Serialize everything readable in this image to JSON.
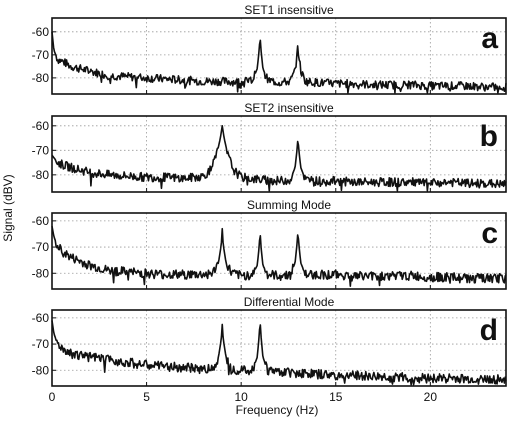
{
  "figure": {
    "xlabel": "Frequency (Hz)",
    "ylabel": "Signal (dBV)"
  },
  "chart_data": [
    {
      "type": "line",
      "title": "SET1 insensitive",
      "panel_letter": "a",
      "xlim": [
        0,
        24
      ],
      "ylim": [
        -87,
        -54
      ],
      "x_ticks": [
        0,
        5,
        10,
        15,
        20
      ],
      "y_ticks": [
        -60,
        -70,
        -80
      ],
      "grid": true,
      "series": [
        {
          "x": [
            0,
            0.1,
            0.3,
            0.6,
            1,
            2,
            3,
            4,
            5,
            6,
            7,
            8,
            9,
            10,
            10.6,
            10.85,
            10.95,
            11,
            11.05,
            11.15,
            11.4,
            12,
            12.6,
            12.85,
            12.95,
            13,
            13.05,
            13.15,
            13.4,
            14,
            15,
            16,
            17,
            18,
            19,
            20,
            21,
            22,
            23,
            24
          ],
          "y": [
            -60,
            -68,
            -72,
            -73,
            -75,
            -77,
            -79,
            -79.5,
            -80,
            -80.5,
            -81,
            -81.5,
            -81.5,
            -81.8,
            -81,
            -76,
            -68,
            -62,
            -68,
            -76,
            -81,
            -82,
            -81.5,
            -77,
            -70,
            -67,
            -70,
            -77,
            -81.5,
            -82,
            -82.5,
            -82.5,
            -83,
            -83,
            -83,
            -83.5,
            -83.5,
            -83.5,
            -84,
            -84
          ]
        }
      ]
    },
    {
      "type": "line",
      "title": "SET2 insensitive",
      "panel_letter": "b",
      "xlim": [
        0,
        24
      ],
      "ylim": [
        -87,
        -56
      ],
      "x_ticks": [
        0,
        5,
        10,
        15,
        20
      ],
      "y_ticks": [
        -60,
        -70,
        -80
      ],
      "grid": true,
      "series": [
        {
          "x": [
            0,
            0.3,
            0.6,
            1,
            2,
            3,
            4,
            5,
            6,
            7,
            8,
            8.4,
            8.7,
            8.9,
            9,
            9.1,
            9.3,
            9.6,
            10,
            11,
            12,
            12.6,
            12.85,
            12.95,
            13,
            13.05,
            13.15,
            13.4,
            14,
            15,
            16,
            17,
            18,
            19,
            20,
            21,
            22,
            23,
            24
          ],
          "y": [
            -72,
            -75,
            -76,
            -77,
            -79,
            -80,
            -80.5,
            -81,
            -81,
            -81.5,
            -80.5,
            -78,
            -72,
            -65,
            -60,
            -65,
            -72,
            -78,
            -81,
            -82,
            -82.5,
            -82,
            -77,
            -70,
            -65,
            -70,
            -77,
            -82,
            -82.5,
            -82.5,
            -83,
            -83,
            -83,
            -83,
            -83.5,
            -83,
            -83.5,
            -83.5,
            -84
          ]
        }
      ]
    },
    {
      "type": "line",
      "title": "Summing Mode",
      "panel_letter": "c",
      "xlim": [
        0,
        24
      ],
      "ylim": [
        -86,
        -57
      ],
      "x_ticks": [
        0,
        5,
        10,
        15,
        20
      ],
      "y_ticks": [
        -60,
        -70,
        -80
      ],
      "grid": true,
      "series": [
        {
          "x": [
            0,
            0.1,
            0.3,
            0.6,
            1,
            2,
            3,
            4,
            5,
            6,
            7,
            8,
            8.5,
            8.8,
            8.95,
            9,
            9.05,
            9.2,
            9.5,
            10,
            10.6,
            10.85,
            10.95,
            11,
            11.05,
            11.15,
            11.4,
            12,
            12.6,
            12.85,
            12.95,
            13,
            13.05,
            13.15,
            13.4,
            14,
            15,
            16,
            17,
            18,
            19,
            20,
            21,
            22,
            23,
            24
          ],
          "y": [
            -62,
            -66,
            -70,
            -72,
            -74,
            -77,
            -79,
            -79.5,
            -80,
            -80.5,
            -80.5,
            -80.5,
            -80,
            -76,
            -69,
            -63,
            -69,
            -76,
            -80,
            -81,
            -80.5,
            -77,
            -70,
            -64,
            -70,
            -77,
            -80.5,
            -81,
            -80.5,
            -76,
            -69,
            -64,
            -69,
            -76,
            -80.5,
            -80.5,
            -80.5,
            -81,
            -81,
            -81,
            -81,
            -81.5,
            -81.5,
            -82,
            -82,
            -82
          ]
        }
      ]
    },
    {
      "type": "line",
      "title": "Differential Mode",
      "panel_letter": "d",
      "xlim": [
        0,
        24
      ],
      "ylim": [
        -86,
        -57
      ],
      "x_ticks": [
        0,
        5,
        10,
        15,
        20
      ],
      "y_ticks": [
        -60,
        -70,
        -80
      ],
      "grid": true,
      "series": [
        {
          "x": [
            0,
            0.1,
            0.3,
            0.6,
            1,
            2,
            3,
            4,
            5,
            6,
            7,
            8,
            8.5,
            8.8,
            8.95,
            9,
            9.05,
            9.2,
            9.5,
            10,
            10.6,
            10.85,
            10.95,
            11,
            11.05,
            11.15,
            11.4,
            12,
            13,
            14,
            15,
            16,
            17,
            18,
            19,
            20,
            21,
            22,
            23,
            24
          ],
          "y": [
            -61,
            -66,
            -70,
            -72,
            -73.5,
            -75,
            -76,
            -77,
            -78,
            -78.5,
            -79,
            -79.5,
            -79.5,
            -75,
            -68,
            -62.5,
            -68,
            -75,
            -79.5,
            -80,
            -80,
            -75,
            -67,
            -61,
            -67,
            -75,
            -80,
            -80.5,
            -81,
            -81.5,
            -82,
            -82,
            -82.5,
            -82.5,
            -83,
            -83,
            -83,
            -83.5,
            -83.5,
            -83.5
          ]
        }
      ]
    }
  ]
}
